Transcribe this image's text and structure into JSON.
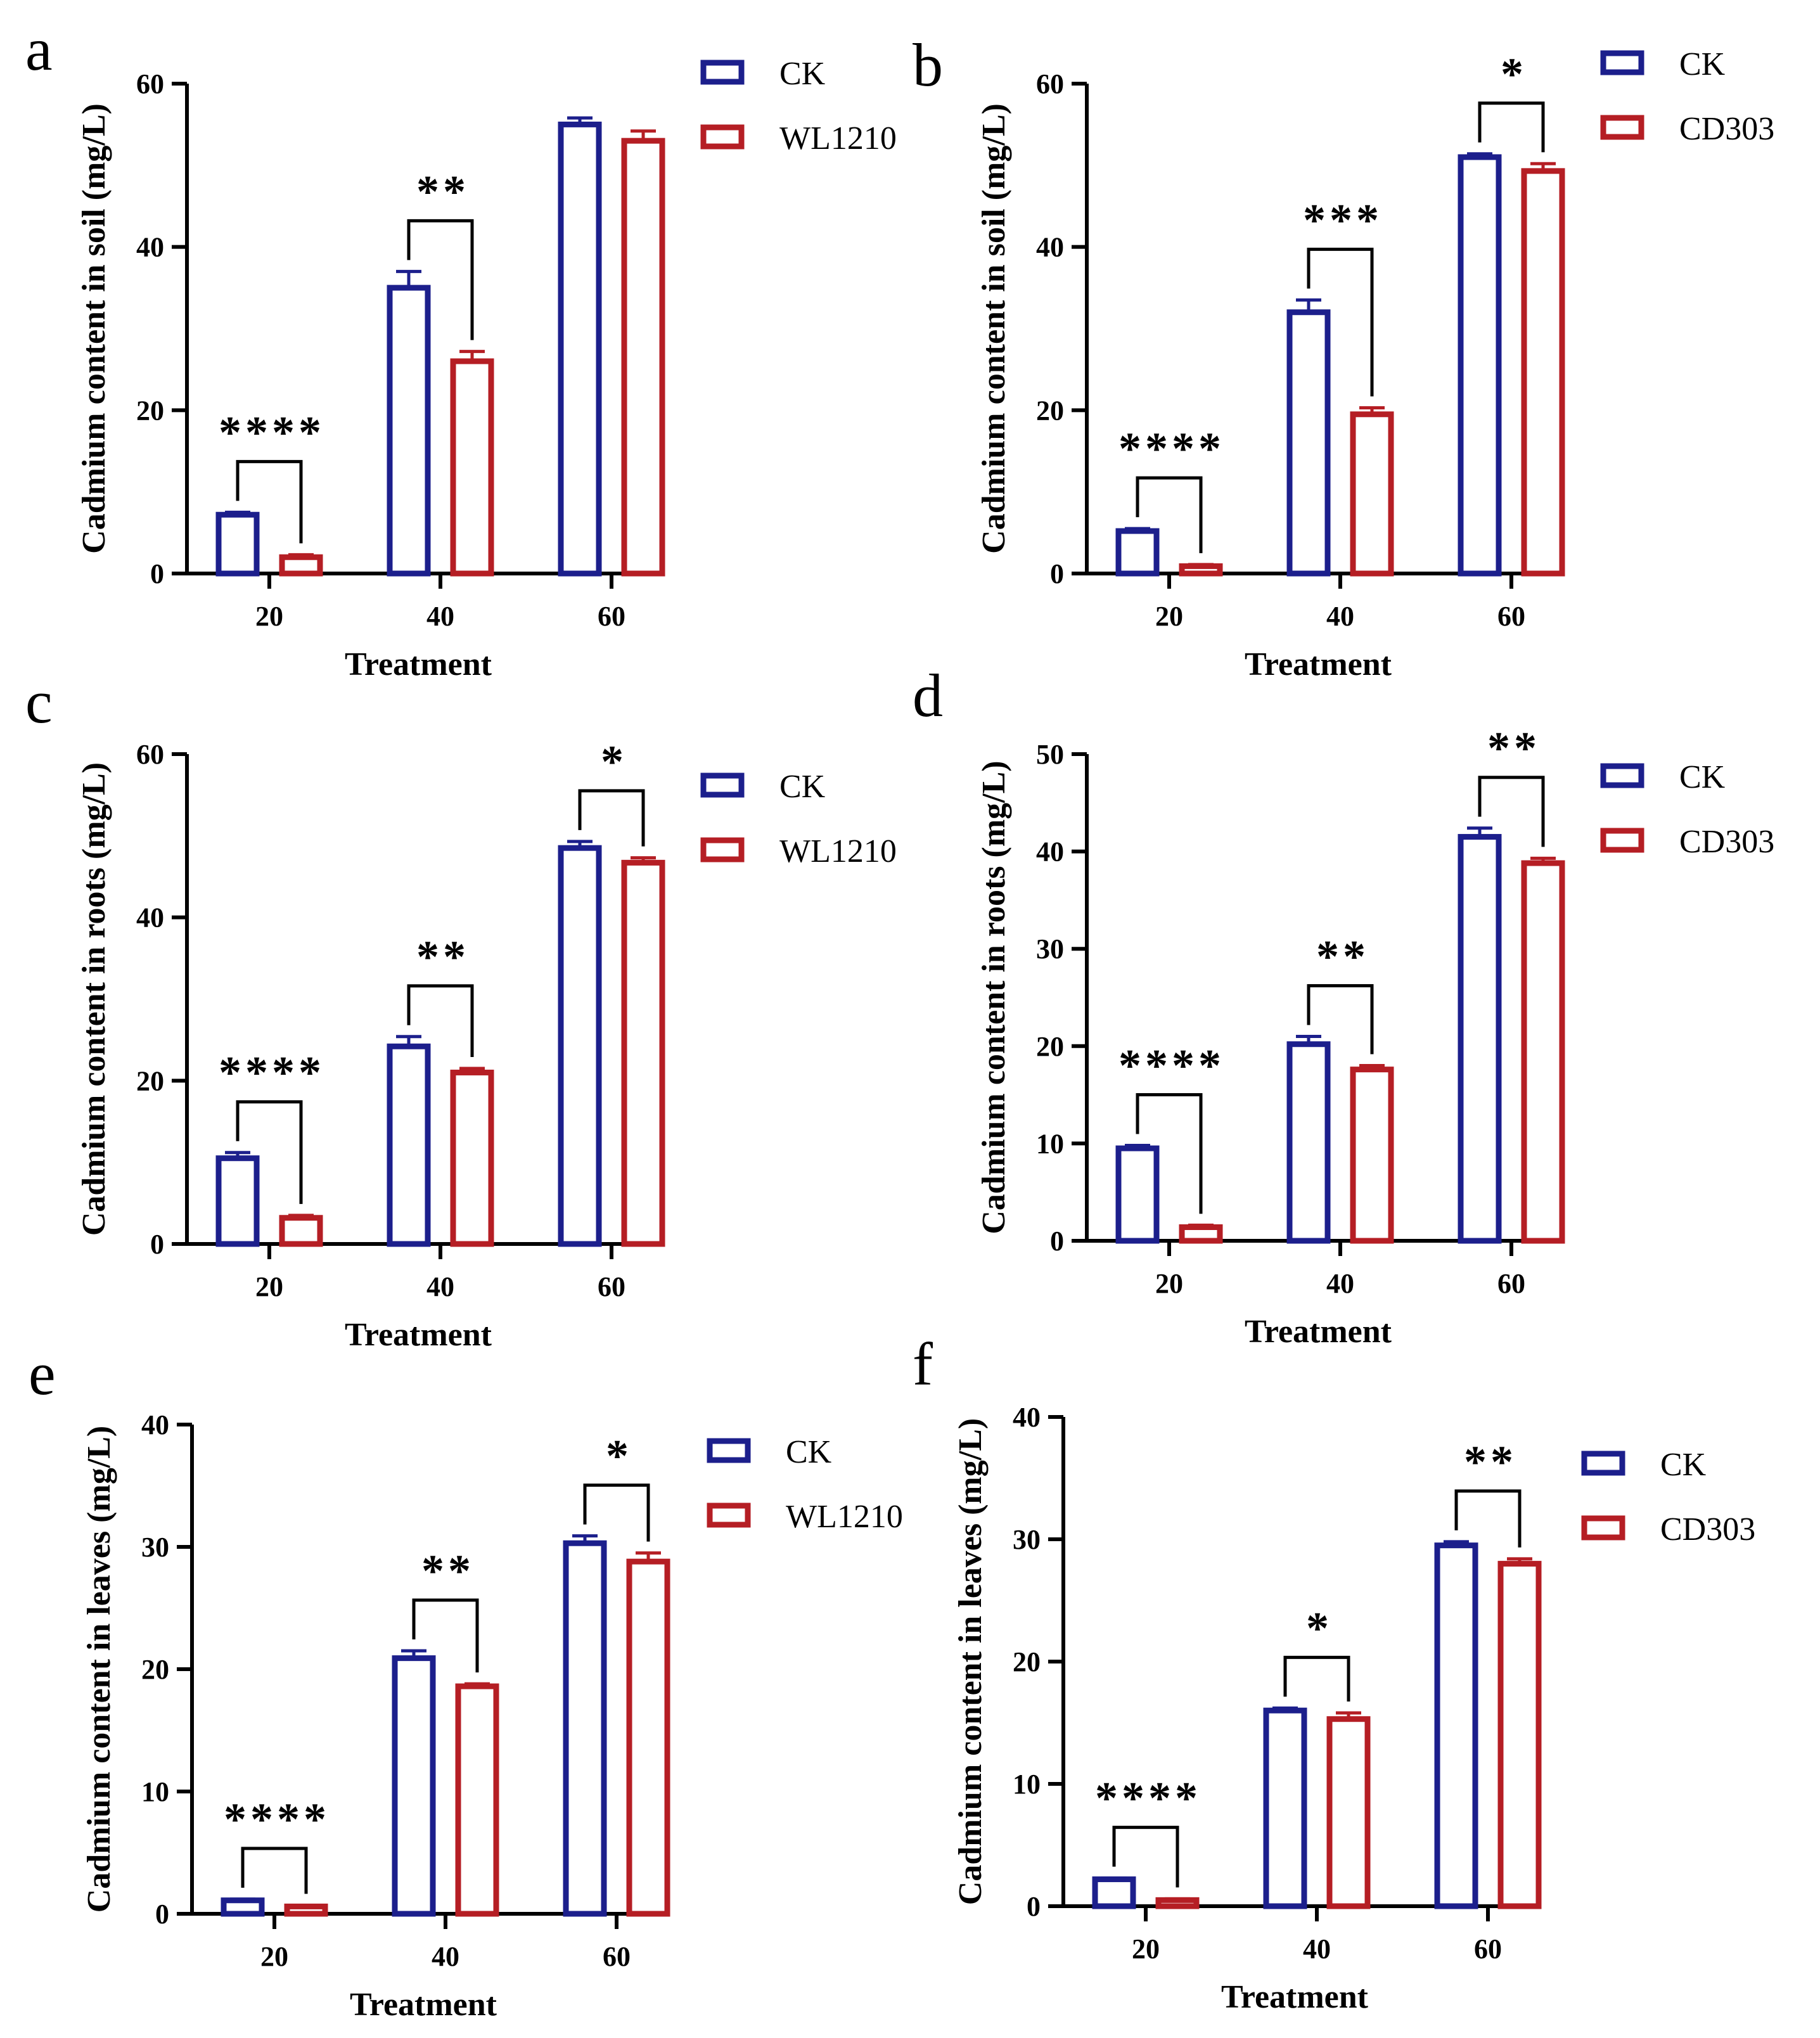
{
  "chart_data": [
    {
      "panel": "a",
      "type": "bar",
      "categories": [
        "20",
        "40",
        "60"
      ],
      "series": [
        {
          "name": "CK",
          "values": [
            7.2,
            35.0,
            55.0
          ],
          "errors": [
            0.3,
            2.0,
            0.8
          ],
          "color": "#1c1f8c"
        },
        {
          "name": "WL1210",
          "values": [
            2.0,
            26.0,
            53.0
          ],
          "errors": [
            0.3,
            1.2,
            1.2
          ],
          "color": "#b51e24"
        }
      ],
      "significance": [
        "****",
        "**",
        ""
      ],
      "xlabel": "Treatment",
      "ylabel": "Cadmium content in soil (mg/L)",
      "ylim": [
        0,
        60
      ],
      "yticks": [
        "0",
        "20",
        "40",
        "60"
      ],
      "legend": "top-right"
    },
    {
      "panel": "b",
      "type": "bar",
      "categories": [
        "20",
        "40",
        "60"
      ],
      "series": [
        {
          "name": "CK",
          "values": [
            5.2,
            32.0,
            51.0
          ],
          "errors": [
            0.3,
            1.5,
            0.4
          ],
          "color": "#1c1f8c"
        },
        {
          "name": "CD303",
          "values": [
            0.9,
            19.5,
            49.3
          ],
          "errors": [
            0.2,
            0.8,
            0.9
          ],
          "color": "#b51e24"
        }
      ],
      "significance": [
        "****",
        "***",
        "*"
      ],
      "xlabel": "Treatment",
      "ylabel": "Cadmium content in soil (mg/L)",
      "ylim": [
        0,
        60
      ],
      "yticks": [
        "0",
        "20",
        "40",
        "60"
      ],
      "legend": "top-right"
    },
    {
      "panel": "c",
      "type": "bar",
      "categories": [
        "20",
        "40",
        "60"
      ],
      "series": [
        {
          "name": "CK",
          "values": [
            10.5,
            24.2,
            48.5
          ],
          "errors": [
            0.7,
            1.2,
            0.8
          ],
          "color": "#1c1f8c"
        },
        {
          "name": "WL1210",
          "values": [
            3.2,
            21.0,
            46.7
          ],
          "errors": [
            0.3,
            0.5,
            0.6
          ],
          "color": "#b51e24"
        }
      ],
      "significance": [
        "****",
        "**",
        "*"
      ],
      "xlabel": "Treatment",
      "ylabel": "Cadmium content in roots (mg/L)",
      "ylim": [
        0,
        60
      ],
      "yticks": [
        "0",
        "20",
        "40",
        "60"
      ],
      "legend": "top-right"
    },
    {
      "panel": "d",
      "type": "bar",
      "categories": [
        "20",
        "40",
        "60"
      ],
      "series": [
        {
          "name": "CK",
          "values": [
            9.5,
            20.2,
            41.5
          ],
          "errors": [
            0.3,
            0.8,
            0.9
          ],
          "color": "#1c1f8c"
        },
        {
          "name": "CD303",
          "values": [
            1.4,
            17.6,
            38.8
          ],
          "errors": [
            0.2,
            0.4,
            0.5
          ],
          "color": "#b51e24"
        }
      ],
      "significance": [
        "****",
        "**",
        "**"
      ],
      "xlabel": "Treatment",
      "ylabel": "Cadmium content in roots (mg/L)",
      "ylim": [
        0,
        50
      ],
      "yticks": [
        "0",
        "10",
        "20",
        "30",
        "40",
        "50"
      ],
      "legend": "top-right"
    },
    {
      "panel": "e",
      "type": "bar",
      "categories": [
        "20",
        "40",
        "60"
      ],
      "series": [
        {
          "name": "CK",
          "values": [
            1.1,
            20.9,
            30.3
          ],
          "errors": [
            0.1,
            0.6,
            0.6
          ],
          "color": "#1c1f8c"
        },
        {
          "name": "WL1210",
          "values": [
            0.6,
            18.6,
            28.8
          ],
          "errors": [
            0.1,
            0.2,
            0.7
          ],
          "color": "#b51e24"
        }
      ],
      "significance": [
        "****",
        "**",
        "*"
      ],
      "xlabel": "Treatment",
      "ylabel": "Cadmium content in leaves (mg/L)",
      "ylim": [
        0,
        40
      ],
      "yticks": [
        "0",
        "10",
        "20",
        "30",
        "40"
      ],
      "legend": "top-right"
    },
    {
      "panel": "f",
      "type": "bar",
      "categories": [
        "20",
        "40",
        "60"
      ],
      "series": [
        {
          "name": "CK",
          "values": [
            2.2,
            16.0,
            29.5
          ],
          "errors": [
            0.1,
            0.2,
            0.3
          ],
          "color": "#1c1f8c"
        },
        {
          "name": "CD303",
          "values": [
            0.5,
            15.3,
            28.0
          ],
          "errors": [
            0.1,
            0.5,
            0.4
          ],
          "color": "#b51e24"
        }
      ],
      "significance": [
        "****",
        "*",
        "**"
      ],
      "xlabel": "Treatment",
      "ylabel": "Cadmium content in leaves (mg/L)",
      "ylim": [
        0,
        40
      ],
      "yticks": [
        "0",
        "10",
        "20",
        "30",
        "40"
      ],
      "legend": "top-right"
    }
  ]
}
